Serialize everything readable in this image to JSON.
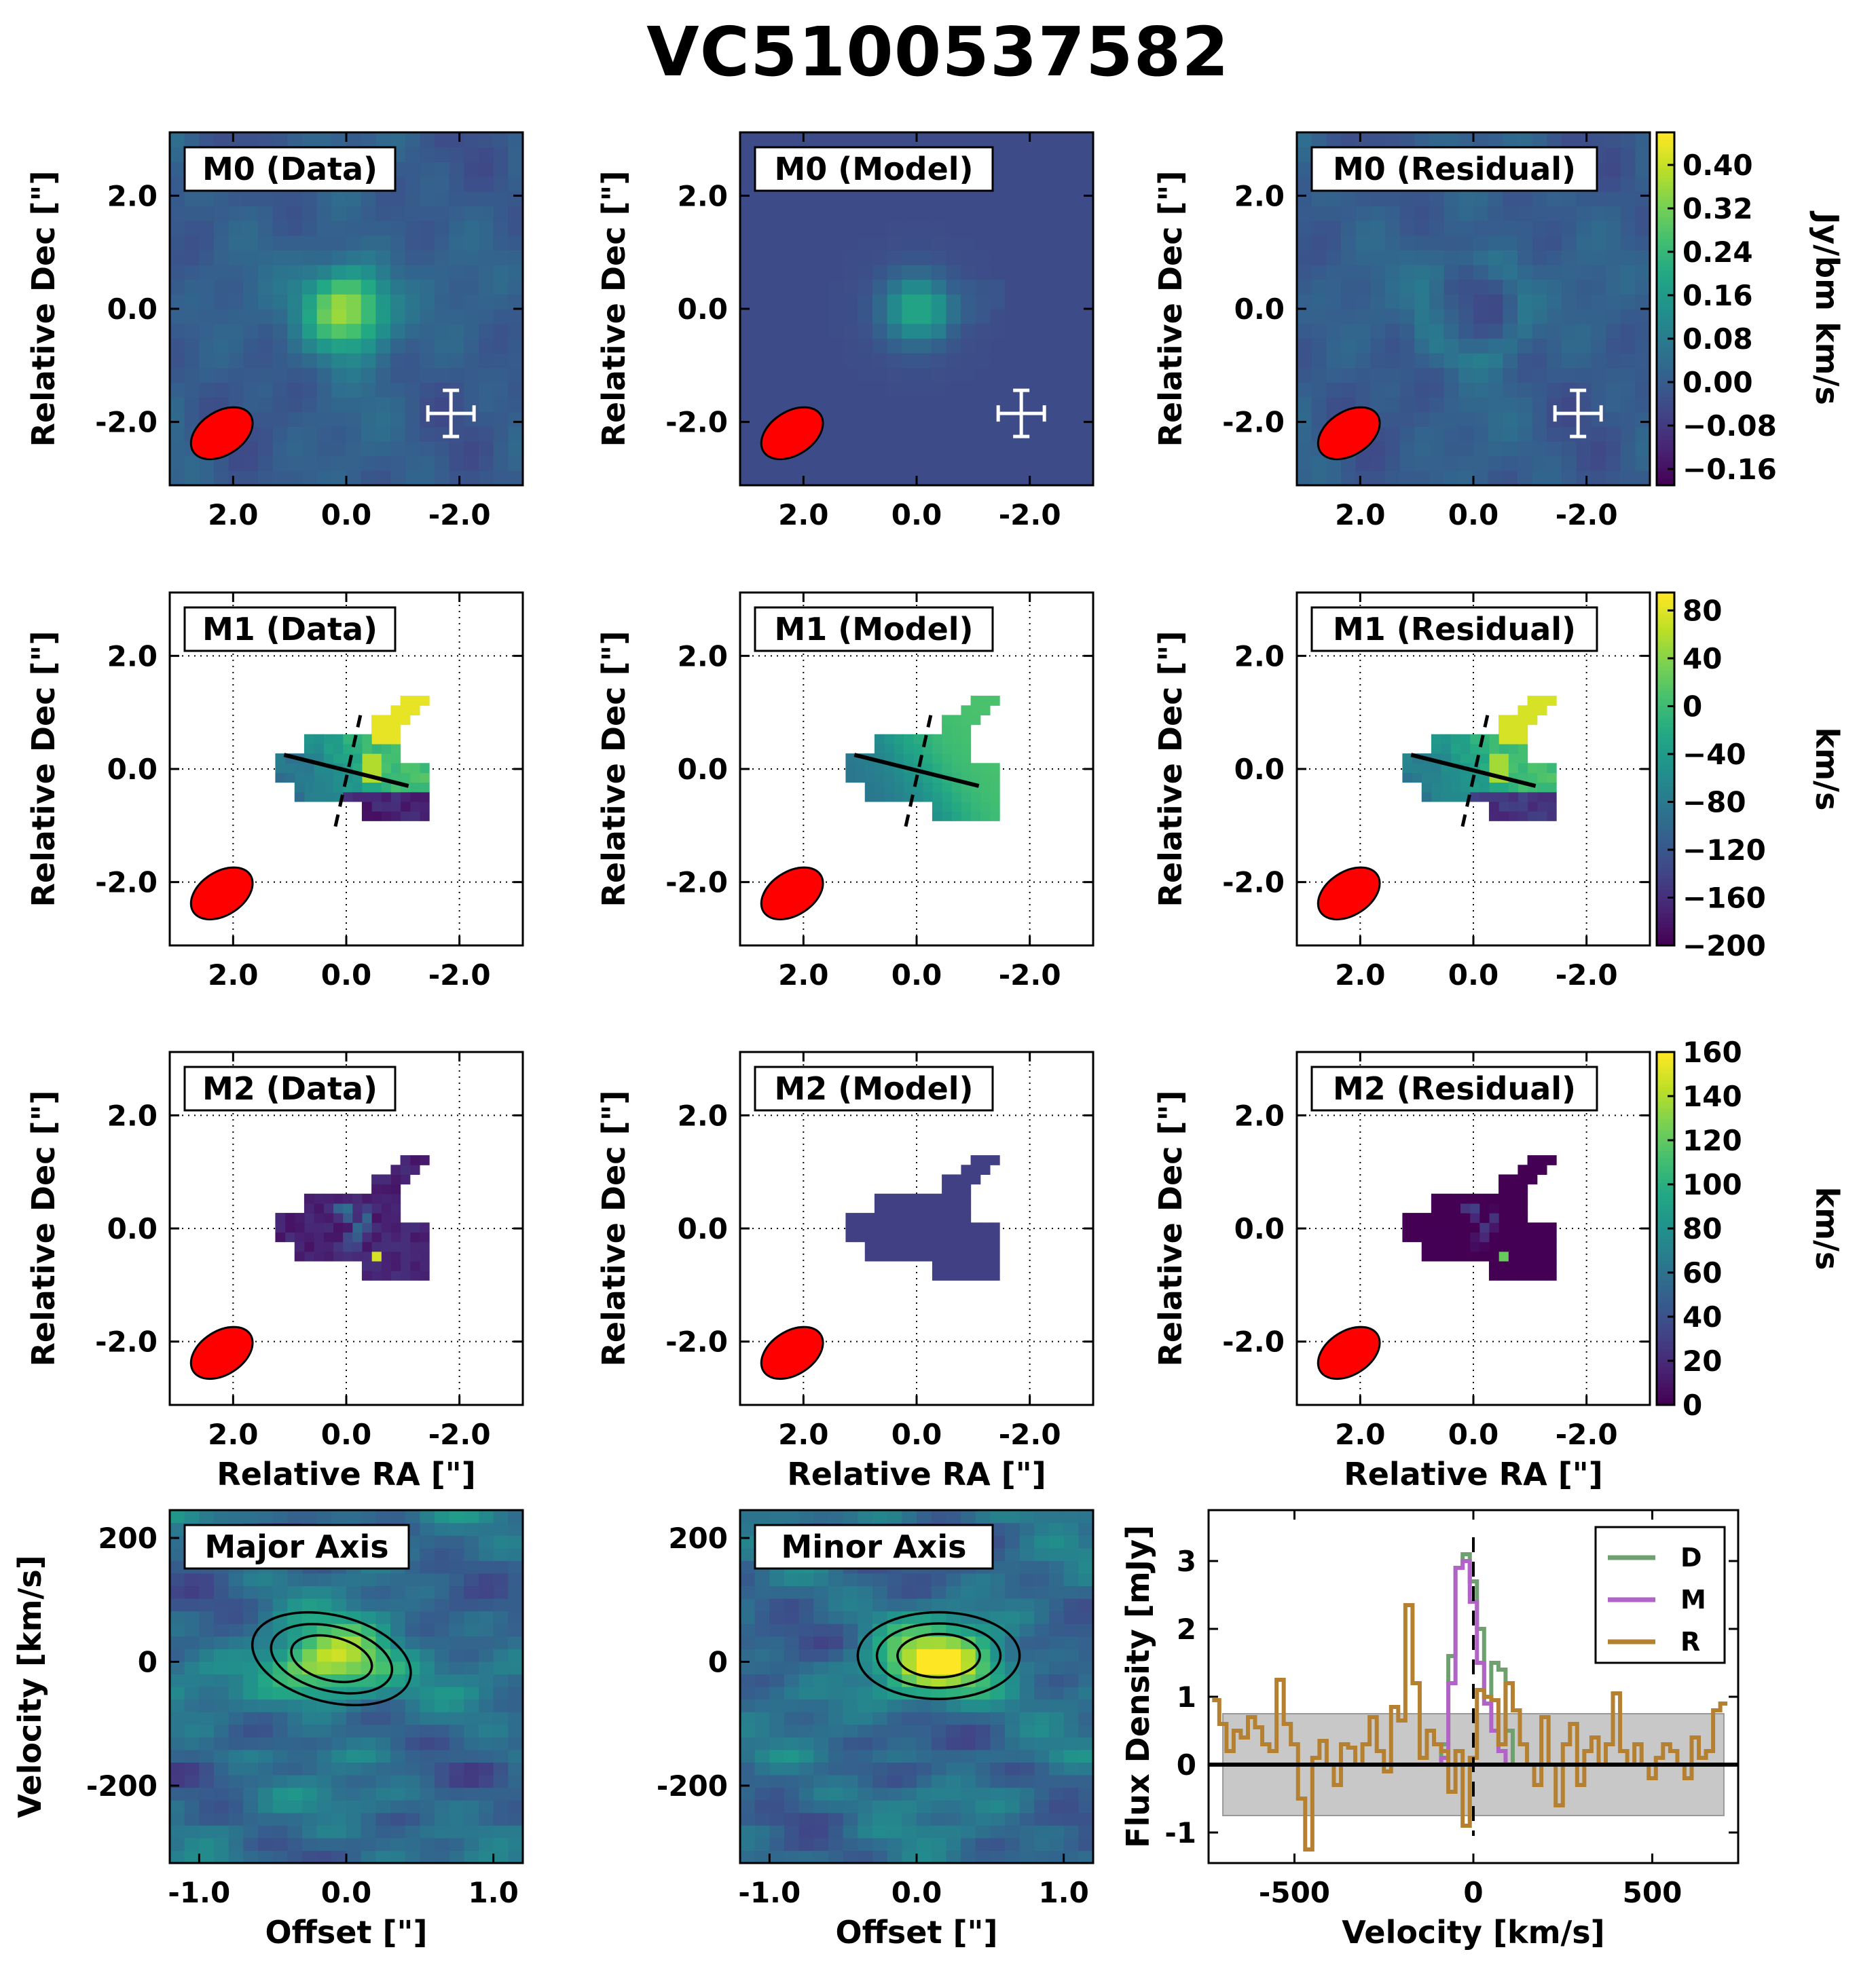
{
  "title": "VC5100537582",
  "colors": {
    "beam": "#ff0000",
    "background": "#3b5b8c",
    "data_line": "#6fa06f",
    "model_line": "#b163c8",
    "residual_line": "#b5802f",
    "noise_band": "#c8c8c8"
  },
  "colormap": "viridis",
  "axes_common": {
    "ra_ticks": [
      "2.0",
      "0.0",
      "-2.0"
    ],
    "dec_ticks": [
      "2.0",
      "0.0",
      "-2.0"
    ],
    "ylabel": "Relative Dec [\"]",
    "xlabel": "Relative RA [\"]"
  },
  "panels": {
    "m0_data": "M0 (Data)",
    "m0_model": "M0 (Model)",
    "m0_residual": "M0 (Residual)",
    "m1_data": "M1 (Data)",
    "m1_model": "M1 (Model)",
    "m1_residual": "M1 (Residual)",
    "m2_data": "M2 (Data)",
    "m2_model": "M2 (Model)",
    "m2_residual": "M2 (Residual)",
    "major": "Major Axis",
    "minor": "Minor Axis"
  },
  "colorbars": {
    "m0": {
      "label": "Jy/bm km/s",
      "ticks": [
        "0.40",
        "0.32",
        "0.24",
        "0.16",
        "0.08",
        "0.00",
        "−0.08",
        "−0.16"
      ],
      "range": [
        -0.19,
        0.46
      ]
    },
    "m1": {
      "label": "km/s",
      "ticks": [
        "80",
        "40",
        "0",
        "−40",
        "−80",
        "−120",
        "−160",
        "−200"
      ],
      "range": [
        -200,
        95
      ]
    },
    "m2": {
      "label": "km/s",
      "ticks": [
        "160",
        "140",
        "120",
        "100",
        "80",
        "60",
        "40",
        "20",
        "0"
      ],
      "range": [
        0,
        160
      ]
    }
  },
  "pv": {
    "xlabel": "Offset [\"]",
    "ylabel": "Velocity [km/s]",
    "xticks": [
      "-1.0",
      "0.0",
      "1.0"
    ],
    "yticks": [
      "200",
      "0",
      "-200"
    ]
  },
  "chart_data": {
    "type": "line",
    "xlabel": "Velocity [km/s]",
    "ylabel": "Flux Density [mJy]",
    "xlim": [
      -740,
      740
    ],
    "ylim": [
      -1.45,
      3.75
    ],
    "xticks": [
      "-500",
      "0",
      "500"
    ],
    "yticks": [
      "3",
      "2",
      "1",
      "0",
      "-1"
    ],
    "noise_band": [
      -0.75,
      0.75
    ],
    "legend_position": "top-right",
    "series": [
      {
        "name": "D",
        "x": [
          -100,
          -80,
          -60,
          -40,
          -20,
          0,
          20,
          40,
          60,
          80,
          100,
          120
        ],
        "y": [
          0,
          0.3,
          1.6,
          2.9,
          3.1,
          2.7,
          2.0,
          1.0,
          1.5,
          1.4,
          0.5,
          0
        ]
      },
      {
        "name": "M",
        "x": [
          -100,
          -80,
          -60,
          -40,
          -20,
          0,
          20,
          40,
          60,
          80,
          100,
          120
        ],
        "y": [
          0,
          0.1,
          1.2,
          2.9,
          3.0,
          2.4,
          1.5,
          0.9,
          0.5,
          0.2,
          0,
          0
        ]
      },
      {
        "name": "R",
        "x": [
          -720,
          -700,
          -680,
          -660,
          -640,
          -620,
          -600,
          -580,
          -560,
          -540,
          -520,
          -500,
          -480,
          -460,
          -440,
          -420,
          -400,
          -380,
          -360,
          -340,
          -320,
          -300,
          -280,
          -260,
          -240,
          -220,
          -200,
          -180,
          -160,
          -140,
          -120,
          -100,
          -80,
          -60,
          -40,
          -20,
          0,
          20,
          40,
          60,
          80,
          100,
          120,
          140,
          160,
          180,
          200,
          220,
          240,
          260,
          280,
          300,
          320,
          340,
          360,
          380,
          400,
          420,
          440,
          460,
          480,
          500,
          520,
          540,
          560,
          580,
          600,
          620,
          640,
          660,
          680,
          700
        ],
        "y": [
          0.95,
          0.6,
          0.2,
          0.5,
          0.4,
          0.7,
          0.55,
          0.3,
          0.2,
          1.25,
          0.6,
          0.3,
          -0.5,
          -1.25,
          0.1,
          0.35,
          0.0,
          -0.3,
          0.3,
          0.25,
          0.0,
          0.3,
          0.7,
          0.2,
          -0.1,
          0.85,
          0.65,
          2.35,
          1.2,
          0.1,
          0.5,
          0.3,
          0.2,
          -0.4,
          0.2,
          -0.9,
          0.1,
          1.1,
          1.0,
          0.95,
          0.3,
          1.2,
          0.8,
          0.3,
          0.0,
          -0.3,
          0.7,
          0.0,
          -0.6,
          0.3,
          0.6,
          -0.3,
          0.2,
          0.4,
          0.0,
          0.3,
          1.05,
          0.2,
          0.0,
          0.3,
          0.0,
          -0.2,
          0.1,
          0.3,
          0.2,
          0.0,
          -0.2,
          0.4,
          0.1,
          0.2,
          0.8,
          0.9
        ]
      }
    ]
  }
}
